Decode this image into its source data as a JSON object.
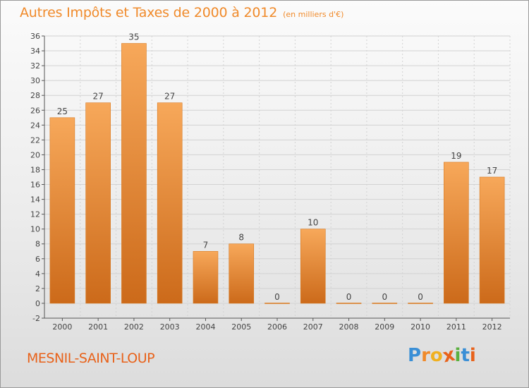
{
  "header": {
    "title": "Autres Impôts et Taxes de 2000 à 2012",
    "unit": "(en milliers d'€)"
  },
  "footer": {
    "commune": "MESNIL-SAINT-LOUP",
    "logo": {
      "letters": [
        "P",
        "r",
        "o",
        "x",
        "i",
        "t",
        "i"
      ],
      "colors": [
        "#3a8fd6",
        "#f08a2a",
        "#f0b020",
        "#e8621a",
        "#5ab040",
        "#3a8fd6",
        "#e8621a"
      ]
    }
  },
  "chart_data": {
    "type": "bar",
    "title": "Autres Impôts et Taxes de 2000 à 2012",
    "subtitle": "(en milliers d'€)",
    "xlabel": "",
    "ylabel": "",
    "categories": [
      "2000",
      "2001",
      "2002",
      "2003",
      "2004",
      "2005",
      "2006",
      "2007",
      "2008",
      "2009",
      "2010",
      "2011",
      "2012"
    ],
    "values": [
      25,
      27,
      35,
      27,
      7,
      8,
      0,
      10,
      0,
      0,
      0,
      19,
      17
    ],
    "ylim": [
      -2,
      36
    ],
    "yticks": [
      -2,
      0,
      2,
      4,
      6,
      8,
      10,
      12,
      14,
      16,
      18,
      20,
      22,
      24,
      26,
      28,
      30,
      32,
      34,
      36
    ],
    "grid": true,
    "legend": "none",
    "colors": {
      "bar_light": "#f7a85a",
      "bar_dark": "#cc6a1a",
      "bar_stroke": "#d8791f",
      "grid": "#d2d2d2",
      "axis": "#555555",
      "text": "#444444"
    }
  }
}
